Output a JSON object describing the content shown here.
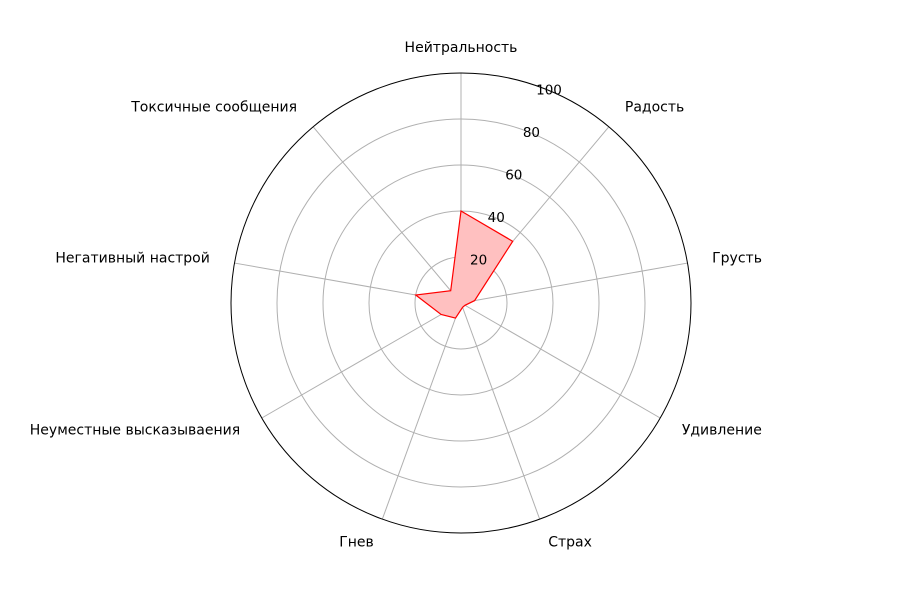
{
  "chart_data": {
    "type": "radar",
    "categories": [
      "Нейтральность",
      "Радость",
      "Грусть",
      "Удивление",
      "Страх",
      "Гнев",
      "Неуместные высказываения",
      "Негативный настрой",
      "Токсичные сообщения"
    ],
    "values": [
      40,
      35,
      6,
      2,
      2,
      7,
      10,
      20,
      7
    ],
    "rlim": [
      0,
      100
    ],
    "rticks": [
      20,
      40,
      60,
      80,
      100
    ],
    "grid": true,
    "colors": {
      "line": "#ff0000",
      "fill": "#ffc0c0",
      "grid": "#b0b0b0",
      "frame": "#000000"
    }
  }
}
